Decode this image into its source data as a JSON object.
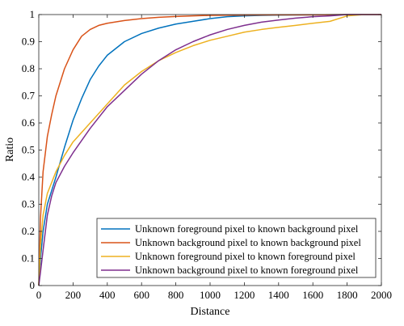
{
  "chart_data": {
    "type": "line",
    "title": "",
    "xlabel": "Distance",
    "ylabel": "Ratio",
    "xlim": [
      0,
      2000
    ],
    "ylim": [
      0,
      1
    ],
    "xticks": [
      "0",
      "200",
      "400",
      "600",
      "800",
      "1000",
      "1200",
      "1400",
      "1600",
      "1800",
      "2000"
    ],
    "yticks": [
      "0",
      "0.1",
      "0.2",
      "0.3",
      "0.4",
      "0.5",
      "0.6",
      "0.7",
      "0.8",
      "0.9",
      "1"
    ],
    "grid": false,
    "legend_position": "bottom-right",
    "series": [
      {
        "name": "Unknown foreground pixel to known background pixel",
        "color": "#0072BD",
        "x": [
          0,
          10,
          25,
          50,
          75,
          100,
          150,
          200,
          250,
          300,
          350,
          400,
          500,
          600,
          700,
          800,
          900,
          1000,
          1100,
          1200,
          1300,
          1400,
          1600,
          1800,
          2000
        ],
        "y": [
          0,
          0.1,
          0.2,
          0.3,
          0.35,
          0.4,
          0.51,
          0.61,
          0.69,
          0.76,
          0.81,
          0.85,
          0.9,
          0.93,
          0.95,
          0.965,
          0.975,
          0.985,
          0.992,
          0.995,
          0.997,
          0.998,
          0.999,
          1.0,
          1.0
        ]
      },
      {
        "name": "Unknown background pixel to known background pixel",
        "color": "#D95319",
        "x": [
          0,
          10,
          25,
          50,
          75,
          100,
          125,
          150,
          200,
          250,
          300,
          350,
          400,
          500,
          600,
          700,
          800,
          900,
          1000,
          1200,
          1400,
          1600,
          1800,
          2000
        ],
        "y": [
          0,
          0.25,
          0.42,
          0.55,
          0.63,
          0.7,
          0.75,
          0.8,
          0.87,
          0.92,
          0.945,
          0.96,
          0.968,
          0.978,
          0.985,
          0.99,
          0.993,
          0.995,
          0.997,
          0.998,
          0.999,
          0.999,
          1.0,
          1.0
        ]
      },
      {
        "name": "Unknown foreground pixel to known foreground pixel",
        "color": "#EDB120",
        "x": [
          0,
          10,
          25,
          50,
          100,
          150,
          200,
          300,
          400,
          500,
          600,
          700,
          800,
          900,
          1000,
          1100,
          1200,
          1300,
          1400,
          1500,
          1600,
          1700,
          1800,
          1900,
          2000
        ],
        "y": [
          0,
          0.15,
          0.26,
          0.34,
          0.42,
          0.48,
          0.53,
          0.6,
          0.67,
          0.74,
          0.79,
          0.83,
          0.86,
          0.885,
          0.905,
          0.92,
          0.935,
          0.945,
          0.953,
          0.96,
          0.968,
          0.975,
          0.995,
          1.0,
          1.0
        ]
      },
      {
        "name": "Unknown background pixel to known foreground pixel",
        "color": "#7E2F8E",
        "x": [
          0,
          10,
          25,
          50,
          75,
          100,
          150,
          200,
          300,
          400,
          500,
          600,
          700,
          800,
          900,
          1000,
          1100,
          1200,
          1300,
          1400,
          1500,
          1600,
          1700,
          1800,
          2000
        ],
        "y": [
          0,
          0.05,
          0.13,
          0.26,
          0.33,
          0.38,
          0.44,
          0.49,
          0.58,
          0.66,
          0.72,
          0.78,
          0.83,
          0.87,
          0.9,
          0.925,
          0.945,
          0.96,
          0.972,
          0.98,
          0.987,
          0.992,
          0.995,
          1.0,
          1.0
        ]
      }
    ]
  }
}
